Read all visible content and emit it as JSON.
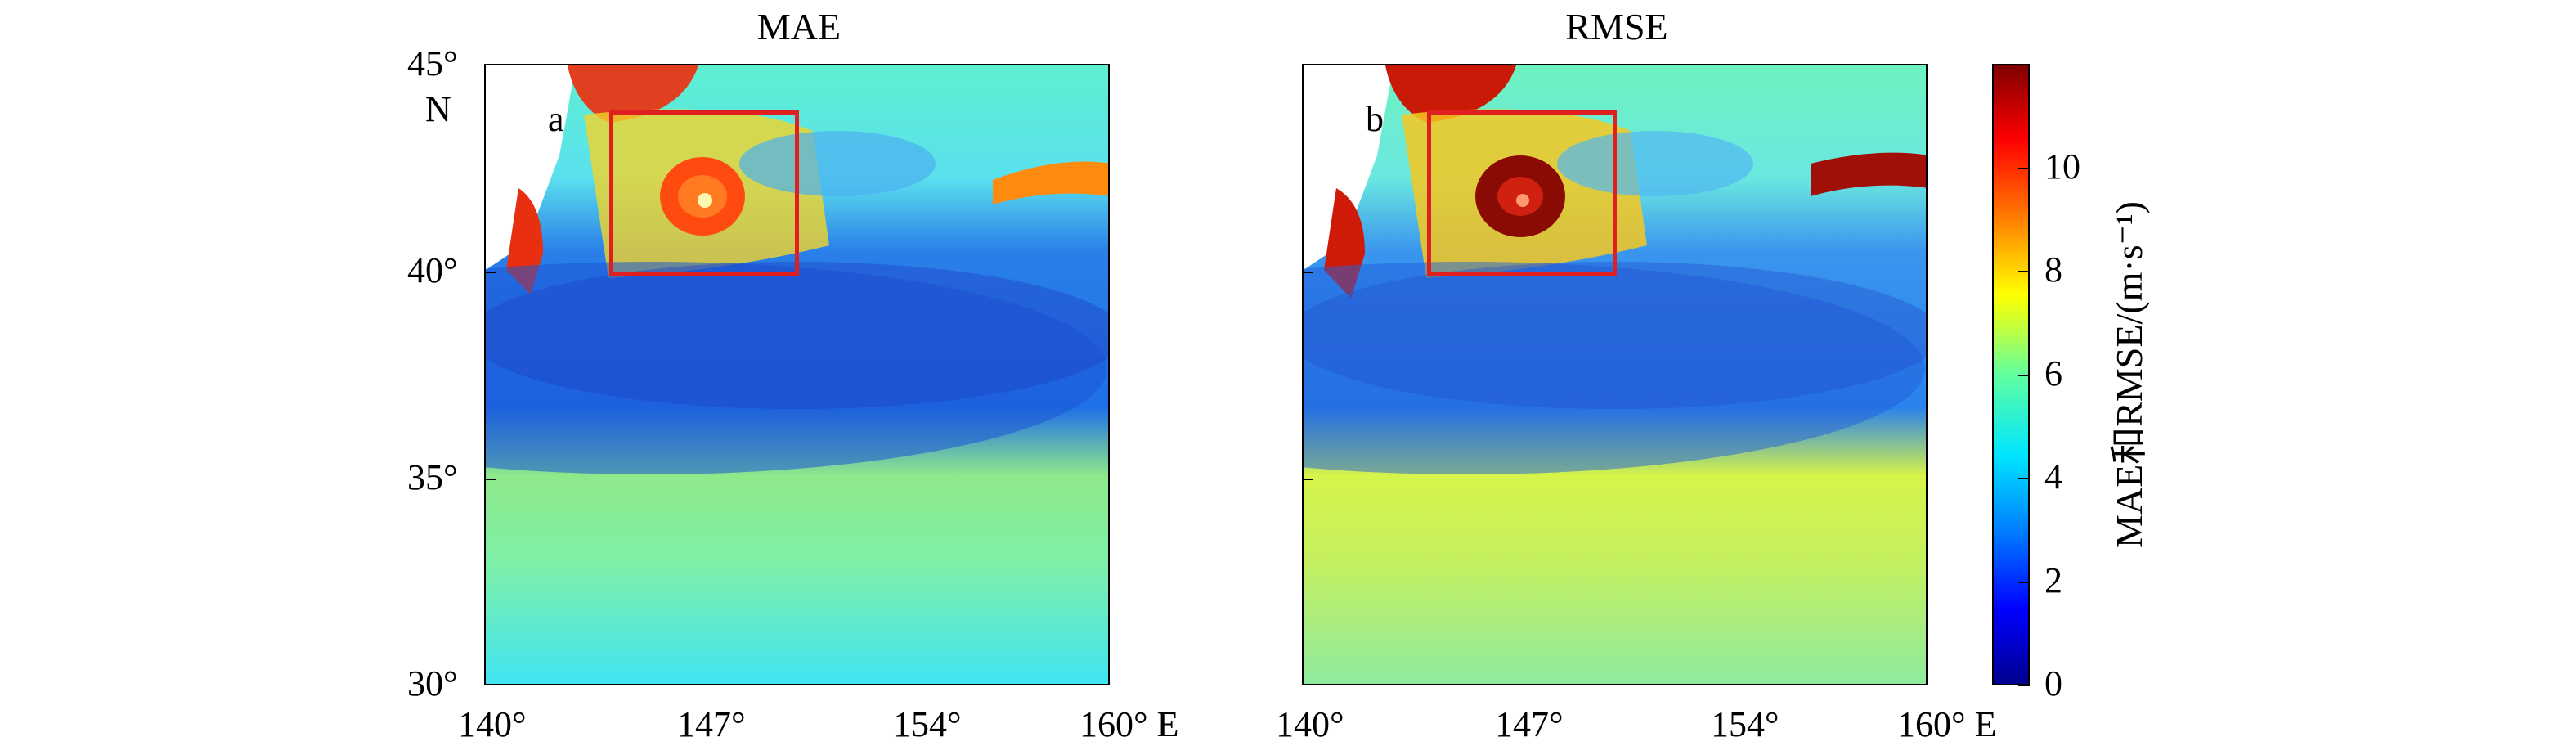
{
  "chart_data": [
    {
      "type": "heatmap",
      "title": "MAE",
      "panel_label": "a",
      "xticks": [
        "140°",
        "147°",
        "154°",
        "160° E"
      ],
      "yticks": [
        "45°",
        "N",
        "40°",
        "35°",
        "30°"
      ],
      "xlim": [
        140,
        160
      ],
      "ylim": [
        30,
        45
      ],
      "highlight_box": {
        "lon": [
          144,
          150
        ],
        "lat": [
          40,
          44
        ]
      }
    },
    {
      "type": "heatmap",
      "title": "RMSE",
      "panel_label": "b",
      "xticks": [
        "140°",
        "147°",
        "154°",
        "160° E"
      ],
      "yticks": [],
      "xlim": [
        140,
        160
      ],
      "ylim": [
        30,
        45
      ],
      "highlight_box": {
        "lon": [
          144,
          150
        ],
        "lat": [
          40,
          44
        ]
      }
    }
  ],
  "colorbar": {
    "label": "MAE和RMSE/(m·s⁻¹)",
    "ticks": [
      "0",
      "2",
      "4",
      "6",
      "8",
      "10"
    ],
    "range": [
      0,
      12
    ],
    "colormap": "jet"
  }
}
